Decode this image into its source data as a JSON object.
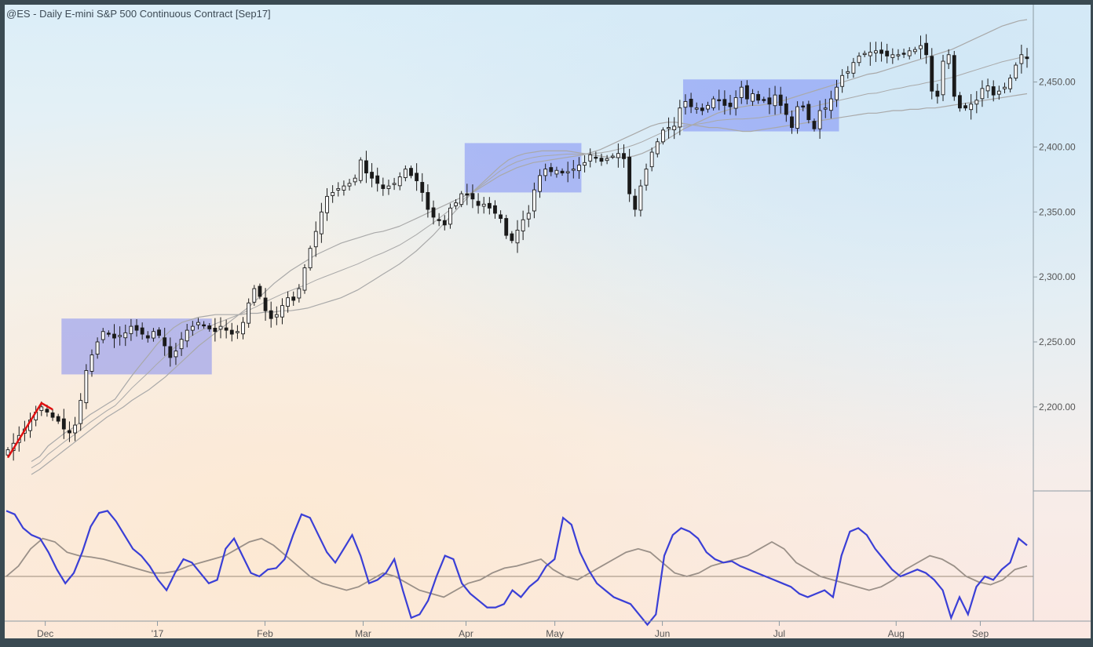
{
  "title": "@ES - Daily  E-mini S&P 500 Continuous Contract [Sep17]",
  "colors": {
    "frame": "#3a4a52",
    "up_fill": "#ffffff",
    "down_fill": "#1a1a1a",
    "band": "#a9a9a9",
    "box_fill": "#5f6ff5",
    "osc_fast": "#3a3fd6",
    "osc_slow": "#9a9088",
    "annotation": "#e01010"
  },
  "chart_data": [
    {
      "type": "candlestick",
      "title": "@ES - Daily  E-mini S&P 500 Continuous Contract [Sep17]",
      "x_tick_labels": [
        "Dec",
        "'17",
        "Feb",
        "Mar",
        "Apr",
        "May",
        "Jun",
        "Jul",
        "Aug",
        "Sep"
      ],
      "y_tick_labels": [
        "2,200.00",
        "2,250.00",
        "2,300.00",
        "2,350.00",
        "2,400.00",
        "2,450.00"
      ],
      "y_ticks": [
        2200,
        2250,
        2300,
        2350,
        2400,
        2450
      ],
      "ylim": [
        2145,
        2495
      ],
      "grid": false,
      "close_series": [
        2167,
        2172,
        2178,
        2183,
        2190,
        2196,
        2200,
        2196,
        2192,
        2189,
        2183,
        2180,
        2186,
        2205,
        2228,
        2240,
        2250,
        2258,
        2256,
        2253,
        2255,
        2257,
        2262,
        2259,
        2256,
        2253,
        2258,
        2255,
        2247,
        2238,
        2243,
        2252,
        2259,
        2262,
        2265,
        2263,
        2260,
        2258,
        2262,
        2259,
        2256,
        2258,
        2265,
        2280,
        2291,
        2285,
        2274,
        2268,
        2271,
        2278,
        2284,
        2282,
        2291,
        2307,
        2322,
        2335,
        2350,
        2362,
        2365,
        2368,
        2370,
        2372,
        2376,
        2390,
        2380,
        2376,
        2372,
        2368,
        2370,
        2372,
        2377,
        2383,
        2378,
        2374,
        2365,
        2352,
        2346,
        2344,
        2340,
        2353,
        2357,
        2364,
        2363,
        2360,
        2355,
        2356,
        2353,
        2349,
        2345,
        2332,
        2328,
        2336,
        2344,
        2349,
        2367,
        2378,
        2383,
        2381,
        2382,
        2380,
        2381,
        2383,
        2386,
        2388,
        2394,
        2392,
        2389,
        2391,
        2393,
        2395,
        2391,
        2364,
        2352,
        2370,
        2383,
        2396,
        2404,
        2413,
        2415,
        2416,
        2430,
        2435,
        2431,
        2430,
        2428,
        2432,
        2437,
        2436,
        2432,
        2431,
        2438,
        2446,
        2437,
        2441,
        2436,
        2436,
        2433,
        2440,
        2432,
        2425,
        2415,
        2431,
        2431,
        2421,
        2414,
        2428,
        2430,
        2437,
        2446,
        2455,
        2458,
        2465,
        2470,
        2472,
        2473,
        2474,
        2472,
        2470,
        2471,
        2471,
        2472,
        2474,
        2475,
        2478,
        2471,
        2443,
        2439,
        2466,
        2471,
        2439,
        2430,
        2430,
        2433,
        2436,
        2445,
        2447,
        2440,
        2443,
        2446,
        2453,
        2463,
        2471,
        2468
      ],
      "upper_band": [
        2158,
        2162,
        2170,
        2175,
        2180,
        2184,
        2189,
        2194,
        2198,
        2202,
        2206,
        2215,
        2224,
        2232,
        2240,
        2248,
        2255,
        2261,
        2265,
        2267,
        2269,
        2270,
        2271,
        2271,
        2271,
        2271,
        2272,
        2272,
        2273,
        2273,
        2274,
        2274,
        2275,
        2276,
        2278,
        2280,
        2282,
        2284,
        2287,
        2290,
        2294,
        2298,
        2302,
        2306,
        2310,
        2315,
        2320,
        2326,
        2332,
        2339,
        2346,
        2353,
        2360,
        2367,
        2373,
        2379,
        2385,
        2390,
        2393,
        2395,
        2396,
        2397,
        2397,
        2397,
        2397,
        2396,
        2395,
        2394,
        2393,
        2392,
        2392,
        2392,
        2393,
        2395,
        2398,
        2402,
        2406,
        2410,
        2414,
        2417,
        2420,
        2423,
        2426,
        2428,
        2430,
        2431,
        2432,
        2432,
        2433,
        2434,
        2436,
        2438,
        2440,
        2442,
        2444,
        2446,
        2448,
        2450,
        2452,
        2454,
        2456,
        2457,
        2459,
        2461,
        2463,
        2465,
        2467,
        2469,
        2471,
        2473,
        2475,
        2478,
        2481,
        2484,
        2487,
        2490,
        2493,
        2495,
        2497,
        2498
      ],
      "lower_band": [
        2148,
        2152,
        2157,
        2162,
        2167,
        2172,
        2177,
        2182,
        2187,
        2192,
        2196,
        2200,
        2205,
        2209,
        2213,
        2218,
        2223,
        2229,
        2235,
        2241,
        2247,
        2252,
        2257,
        2262,
        2267,
        2272,
        2277,
        2283,
        2289,
        2295,
        2300,
        2305,
        2309,
        2313,
        2317,
        2320,
        2323,
        2326,
        2328,
        2330,
        2332,
        2334,
        2335,
        2337,
        2339,
        2342,
        2345,
        2348,
        2351,
        2354,
        2357,
        2360,
        2363,
        2366,
        2370,
        2374,
        2378,
        2381,
        2384,
        2386,
        2388,
        2389,
        2390,
        2391,
        2392,
        2393,
        2394,
        2396,
        2398,
        2401,
        2404,
        2407,
        2410,
        2413,
        2416,
        2418,
        2419,
        2419,
        2418,
        2417,
        2416,
        2415,
        2415,
        2414,
        2413,
        2412,
        2412,
        2413,
        2414,
        2415,
        2416,
        2417,
        2418,
        2419,
        2420,
        2421,
        2422,
        2423,
        2424,
        2425,
        2426,
        2426,
        2427,
        2428,
        2428,
        2429,
        2429,
        2430,
        2430,
        2431,
        2432,
        2433,
        2434,
        2435,
        2436,
        2437,
        2438,
        2439,
        2440,
        2441
      ],
      "boxes": [
        {
          "x_start": 10,
          "x_end": 36,
          "y_top": 2268,
          "y_bottom": 2225
        },
        {
          "x_start": 82,
          "x_end": 102,
          "y_top": 2403,
          "y_bottom": 2365
        },
        {
          "x_start": 121,
          "x_end": 148,
          "y_top": 2452,
          "y_bottom": 2412
        }
      ]
    },
    {
      "type": "line",
      "title": "",
      "series": [
        {
          "values": [
            0.95,
            0.9,
            0.7,
            0.6,
            0.55,
            0.35,
            0.1,
            -0.1,
            0.05,
            0.35,
            0.72,
            0.92,
            0.95,
            0.8,
            0.6,
            0.4,
            0.3,
            0.15,
            -0.05,
            -0.2,
            0.05,
            0.25,
            0.2,
            0.05,
            -0.1,
            -0.05,
            0.4,
            0.55,
            0.3,
            0.05,
            0.0,
            0.1,
            0.12,
            0.25,
            0.6,
            0.9,
            0.85,
            0.6,
            0.35,
            0.2,
            0.4,
            0.6,
            0.3,
            -0.1,
            -0.05,
            0.05,
            0.25,
            -0.2,
            -0.6,
            -0.55,
            -0.35,
            0.0,
            0.3,
            0.25,
            -0.1,
            -0.25,
            -0.35,
            -0.45,
            -0.45,
            -0.4,
            -0.2,
            -0.3,
            -0.15,
            -0.05,
            0.15,
            0.25,
            0.85,
            0.75,
            0.35,
            0.1,
            -0.1,
            -0.2,
            -0.3,
            -0.35,
            -0.4,
            -0.55,
            -0.7,
            -0.55,
            0.3,
            0.6,
            0.7,
            0.65,
            0.55,
            0.35,
            0.25,
            0.2,
            0.22,
            0.15,
            0.1,
            0.05,
            0.0,
            -0.05,
            -0.1,
            -0.15,
            -0.25,
            -0.3,
            -0.25,
            -0.2,
            -0.3,
            0.3,
            0.65,
            0.7,
            0.6,
            0.4,
            0.25,
            0.1,
            0.0,
            0.05,
            0.1,
            0.05,
            -0.05,
            -0.2,
            -0.6,
            -0.3,
            -0.55,
            -0.15,
            0.0,
            -0.05,
            0.1,
            0.2,
            0.55,
            0.45
          ]
        },
        {
          "values": [
            0.0,
            0.15,
            0.4,
            0.55,
            0.5,
            0.35,
            0.3,
            0.28,
            0.25,
            0.2,
            0.15,
            0.1,
            0.05,
            0.05,
            0.08,
            0.15,
            0.2,
            0.25,
            0.3,
            0.4,
            0.5,
            0.55,
            0.45,
            0.3,
            0.15,
            0.0,
            -0.1,
            -0.15,
            -0.2,
            -0.15,
            -0.05,
            0.05,
            0.0,
            -0.1,
            -0.2,
            -0.25,
            -0.3,
            -0.2,
            -0.1,
            -0.05,
            0.05,
            0.12,
            0.15,
            0.2,
            0.25,
            0.1,
            0.0,
            -0.05,
            0.05,
            0.15,
            0.25,
            0.35,
            0.4,
            0.35,
            0.2,
            0.05,
            0.0,
            0.05,
            0.15,
            0.2,
            0.25,
            0.3,
            0.4,
            0.5,
            0.4,
            0.2,
            0.1,
            0.0,
            -0.05,
            -0.1,
            -0.15,
            -0.2,
            -0.15,
            -0.05,
            0.1,
            0.2,
            0.3,
            0.25,
            0.15,
            0.0,
            -0.08,
            -0.12,
            -0.05,
            0.1,
            0.15
          ]
        }
      ]
    }
  ]
}
